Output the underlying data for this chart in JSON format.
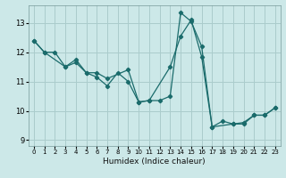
{
  "xlabel": "Humidex (Indice chaleur)",
  "bg_color": "#cce8e8",
  "grid_color": "#aacccc",
  "line_color": "#1a6b6b",
  "xlim": [
    -0.5,
    23.5
  ],
  "ylim": [
    8.8,
    13.6
  ],
  "yticks": [
    9,
    10,
    11,
    12,
    13
  ],
  "xticks": [
    0,
    1,
    2,
    3,
    4,
    5,
    6,
    7,
    8,
    9,
    10,
    11,
    12,
    13,
    14,
    15,
    16,
    17,
    18,
    19,
    20,
    21,
    22,
    23
  ],
  "line1_x": [
    0,
    1,
    3,
    4,
    5,
    6,
    7,
    9,
    10,
    11,
    13,
    14,
    15,
    16,
    17,
    19,
    20,
    21,
    22,
    23
  ],
  "line1_y": [
    12.4,
    12.0,
    11.5,
    11.75,
    11.3,
    11.3,
    11.1,
    11.4,
    10.3,
    10.35,
    11.5,
    12.55,
    13.1,
    11.85,
    9.45,
    9.55,
    9.55,
    9.85,
    9.85,
    10.1
  ],
  "line2_x": [
    0,
    1,
    2,
    3,
    4,
    5,
    6,
    7,
    8,
    9,
    10,
    11,
    12,
    13,
    14,
    15,
    16,
    17,
    18,
    19,
    20,
    21,
    22,
    23
  ],
  "line2_y": [
    12.4,
    12.0,
    12.0,
    11.5,
    11.65,
    11.3,
    11.15,
    10.85,
    11.3,
    11.0,
    10.3,
    10.35,
    10.35,
    10.5,
    13.35,
    13.05,
    12.2,
    9.45,
    9.65,
    9.55,
    9.6,
    9.85,
    9.85,
    10.1
  ]
}
